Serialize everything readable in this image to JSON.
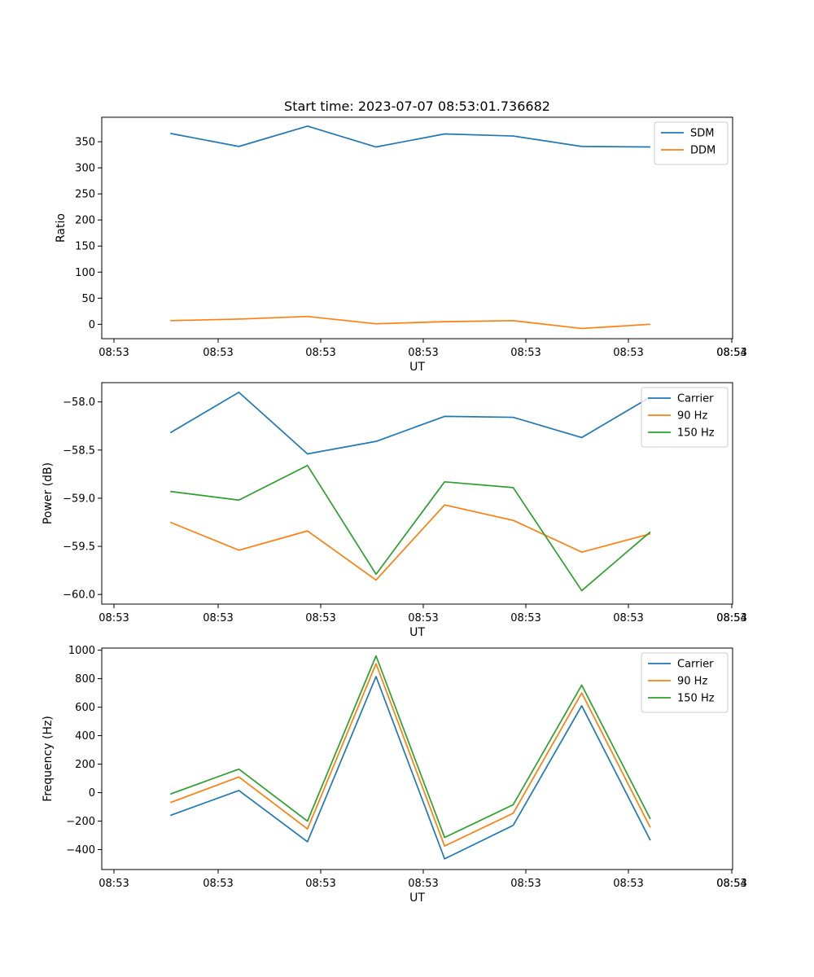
{
  "figure": {
    "title": "Start time: 2023-07-07 08:53:01.736682"
  },
  "chart_data": [
    {
      "type": "line",
      "title": "Start time: 2023-07-07 08:53:01.736682",
      "xlabel": "UT",
      "ylabel": "Ratio",
      "x_tick_labels": [
        "08:53",
        "08:53",
        "08:53",
        "08:53",
        "08:53",
        "08:53",
        "08:53"
      ],
      "x_end_tick_label": "08:54",
      "y_ticks": [
        0,
        50,
        100,
        150,
        200,
        250,
        300,
        350
      ],
      "y_tick_labels": [
        "0",
        "50",
        "100",
        "150",
        "200",
        "250",
        "300",
        "350"
      ],
      "ylim": [
        -27.6,
        397
      ],
      "x": [
        1,
        2,
        3,
        4,
        5,
        6,
        7,
        8
      ],
      "xlim": [
        0,
        9.2
      ],
      "legend": "top-right",
      "series": [
        {
          "name": "SDM",
          "color": "#1f77b4",
          "values": [
            366,
            341,
            380,
            340,
            365,
            361,
            341,
            340
          ]
        },
        {
          "name": "DDM",
          "color": "#ff7f0e",
          "values": [
            7,
            10,
            15,
            1,
            5,
            7,
            -8,
            0
          ]
        }
      ]
    },
    {
      "type": "line",
      "xlabel": "UT",
      "ylabel": "Power (dB)",
      "x_tick_labels": [
        "08:53",
        "08:53",
        "08:53",
        "08:53",
        "08:53",
        "08:53",
        "08:53"
      ],
      "x_end_tick_label": "08:54",
      "y_ticks": [
        -58.0,
        -58.5,
        -59.0,
        -59.5,
        -60.0
      ],
      "y_tick_labels": [
        "−58.0",
        "−58.5",
        "−59.0",
        "−59.5",
        "−60.0"
      ],
      "ylim": [
        -60.1,
        -57.8
      ],
      "x": [
        1,
        2,
        3,
        4,
        5,
        6,
        7,
        8
      ],
      "xlim": [
        0,
        9.2
      ],
      "legend": "top-right",
      "series": [
        {
          "name": "Carrier",
          "color": "#1f77b4",
          "values": [
            -58.32,
            -57.9,
            -58.54,
            -58.41,
            -58.15,
            -58.16,
            -58.37,
            -57.95
          ]
        },
        {
          "name": "90 Hz",
          "color": "#ff7f0e",
          "values": [
            -59.25,
            -59.54,
            -59.34,
            -59.85,
            -59.07,
            -59.23,
            -59.56,
            -59.37
          ]
        },
        {
          "name": "150 Hz",
          "color": "#2ca02c",
          "values": [
            -58.93,
            -59.02,
            -58.66,
            -59.79,
            -58.83,
            -58.89,
            -59.96,
            -59.35
          ]
        }
      ]
    },
    {
      "type": "line",
      "xlabel": "UT",
      "ylabel": "Frequency (Hz)",
      "x_tick_labels": [
        "08:53",
        "08:53",
        "08:53",
        "08:53",
        "08:53",
        "08:53",
        "08:53"
      ],
      "x_end_tick_label": "08:54",
      "y_ticks": [
        1000,
        800,
        600,
        400,
        200,
        0,
        -200,
        -400
      ],
      "y_tick_labels": [
        "1000",
        "800",
        "600",
        "400",
        "200",
        "0",
        "−200",
        "−400"
      ],
      "ylim": [
        -540,
        1015
      ],
      "x": [
        1,
        2,
        3,
        4,
        5,
        6,
        7,
        8
      ],
      "xlim": [
        0,
        9.2
      ],
      "legend": "top-right",
      "series": [
        {
          "name": "Carrier",
          "color": "#1f77b4",
          "values": [
            -160,
            15,
            -345,
            815,
            -465,
            -230,
            610,
            -335
          ]
        },
        {
          "name": "90 Hz",
          "color": "#ff7f0e",
          "values": [
            -70,
            110,
            -255,
            905,
            -375,
            -145,
            700,
            -245
          ]
        },
        {
          "name": "150 Hz",
          "color": "#2ca02c",
          "values": [
            -10,
            165,
            -200,
            960,
            -315,
            -85,
            755,
            -185
          ]
        }
      ]
    }
  ]
}
